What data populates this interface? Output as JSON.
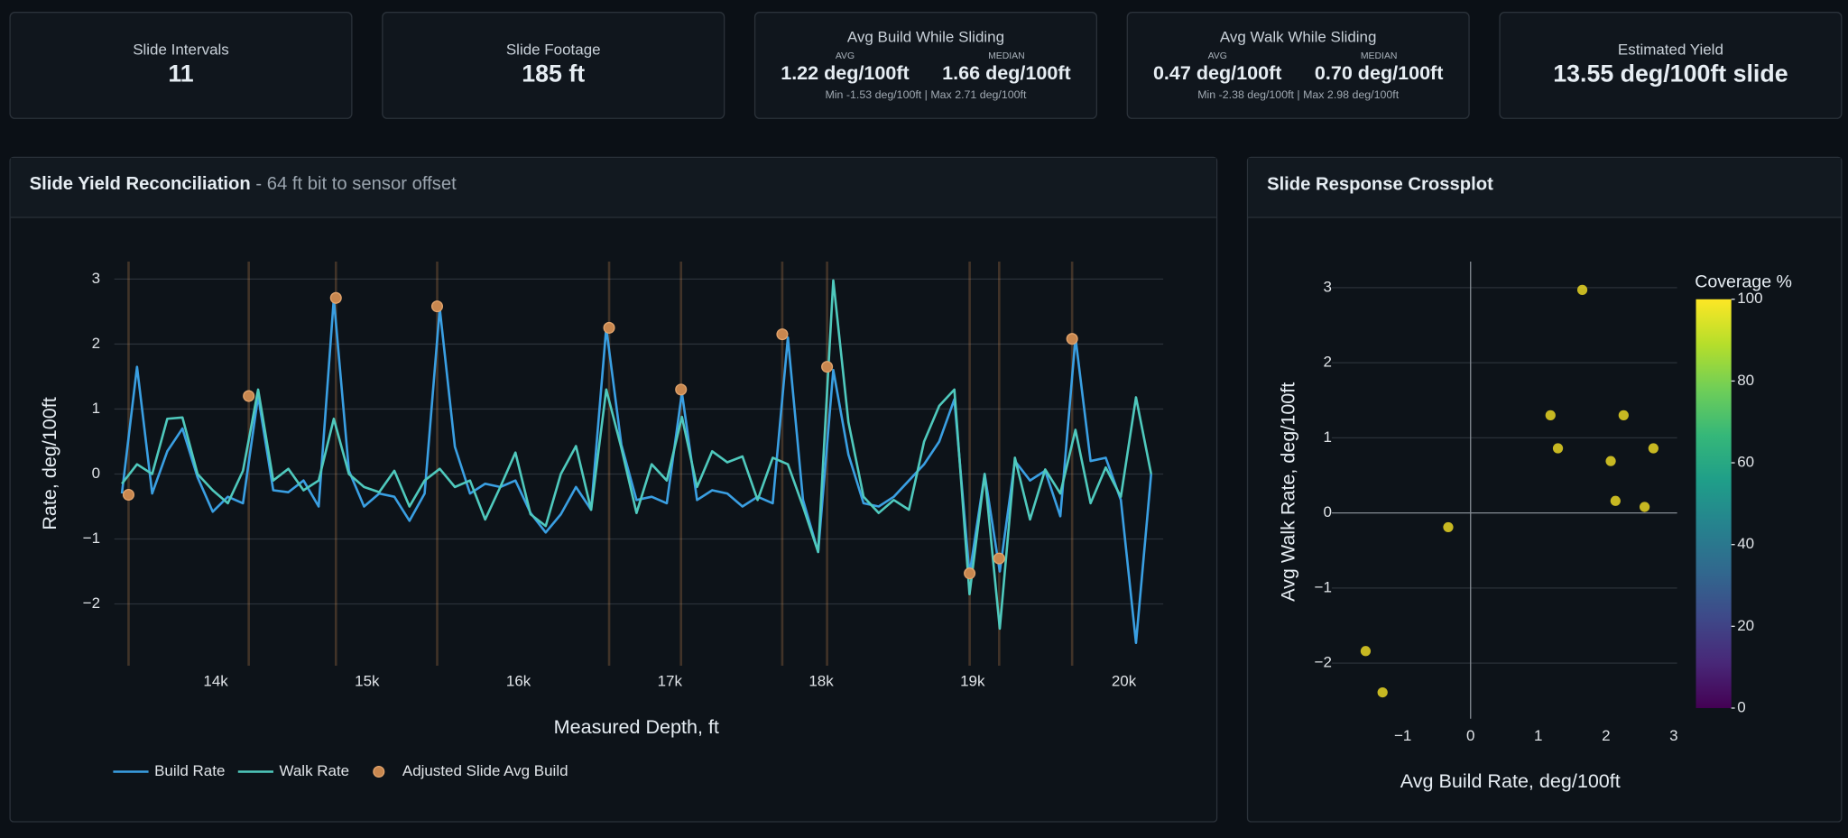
{
  "kpis": [
    {
      "label": "Slide Intervals",
      "value": "11"
    },
    {
      "label": "Slide Footage",
      "value": "185 ft"
    },
    {
      "label": "Avg Build While Sliding",
      "avg_label": "AVG",
      "avg": "1.22 deg/100ft",
      "median_label": "MEDIAN",
      "median": "1.66 deg/100ft",
      "range": "Min -1.53 deg/100ft | Max 2.71 deg/100ft"
    },
    {
      "label": "Avg Walk While Sliding",
      "avg_label": "AVG",
      "avg": "0.47 deg/100ft",
      "median_label": "MEDIAN",
      "median": "0.70 deg/100ft",
      "range": "Min -2.38 deg/100ft | Max 2.98 deg/100ft"
    },
    {
      "label": "Estimated Yield",
      "value": "13.55 deg/100ft slide"
    }
  ],
  "chart_data": [
    {
      "type": "line",
      "title": "Slide Yield Reconciliation",
      "subtitle": "- 64 ft bit to sensor offset",
      "x_label": "Measured Depth, ft",
      "y_label": "Rate, deg/100ft",
      "x": [
        13380,
        13480,
        13580,
        13680,
        13780,
        13880,
        13980,
        14080,
        14180,
        14280,
        14380,
        14480,
        14580,
        14680,
        14780,
        14880,
        14980,
        15080,
        15180,
        15280,
        15380,
        15480,
        15580,
        15680,
        15780,
        15880,
        15980,
        16080,
        16180,
        16280,
        16380,
        16480,
        16580,
        16680,
        16780,
        16880,
        16980,
        17080,
        17180,
        17280,
        17380,
        17480,
        17580,
        17680,
        17780,
        17880,
        17980,
        18080,
        18180,
        18280,
        18380,
        18480,
        18580,
        18680,
        18780,
        18880,
        18980,
        19080,
        19180,
        19280,
        19380,
        19480,
        19580,
        19680,
        19780,
        19880,
        19980,
        20080,
        20180
      ],
      "xlim": [
        13330,
        20260
      ],
      "xticks": [
        {
          "value": 14000,
          "label": "14k"
        },
        {
          "value": 15000,
          "label": "15k"
        },
        {
          "value": 16000,
          "label": "16k"
        },
        {
          "value": 17000,
          "label": "17k"
        },
        {
          "value": 18000,
          "label": "18k"
        },
        {
          "value": 19000,
          "label": "19k"
        },
        {
          "value": 20000,
          "label": "20k"
        }
      ],
      "ylim": [
        -2.95,
        3.27
      ],
      "yticks": [
        {
          "value": -2,
          "label": "−2"
        },
        {
          "value": -1,
          "label": "−1"
        },
        0,
        1,
        2,
        3
      ],
      "grid": true,
      "legend": "bottom",
      "series": [
        {
          "name": "Build Rate",
          "color": "#3a9fe2",
          "mode": "lines",
          "values": [
            -0.3,
            1.65,
            -0.3,
            0.35,
            0.7,
            -0.05,
            -0.58,
            -0.35,
            -0.45,
            1.2,
            -0.25,
            -0.28,
            -0.1,
            -0.5,
            2.7,
            0.05,
            -0.5,
            -0.3,
            -0.35,
            -0.72,
            -0.3,
            2.55,
            0.42,
            -0.3,
            -0.15,
            -0.2,
            -0.1,
            -0.6,
            -0.9,
            -0.62,
            -0.2,
            -0.55,
            2.25,
            0.45,
            -0.4,
            -0.35,
            -0.45,
            1.25,
            -0.4,
            -0.25,
            -0.3,
            -0.5,
            -0.35,
            -0.45,
            2.1,
            -0.4,
            -1.2,
            1.6,
            0.3,
            -0.45,
            -0.5,
            -0.35,
            -0.1,
            0.15,
            0.5,
            1.15,
            -1.55,
            0.0,
            -1.5,
            0.2,
            -0.1,
            0.05,
            -0.65,
            2.1,
            0.2,
            0.25,
            -0.4,
            -2.6,
            0.0
          ]
        },
        {
          "name": "Walk Rate",
          "color": "#4fc9bd",
          "mode": "lines",
          "values": [
            -0.15,
            0.15,
            0.0,
            0.85,
            0.87,
            0.0,
            -0.25,
            -0.45,
            0.05,
            1.3,
            -0.1,
            0.08,
            -0.25,
            -0.1,
            0.85,
            0.0,
            -0.2,
            -0.28,
            0.05,
            -0.5,
            -0.1,
            0.08,
            -0.2,
            -0.1,
            -0.7,
            -0.2,
            0.33,
            -0.62,
            -0.8,
            0.0,
            0.43,
            -0.55,
            1.3,
            0.4,
            -0.6,
            0.15,
            -0.1,
            0.88,
            -0.2,
            0.35,
            0.18,
            0.27,
            -0.4,
            0.25,
            0.15,
            -0.5,
            -1.2,
            2.98,
            0.8,
            -0.35,
            -0.6,
            -0.4,
            -0.55,
            0.5,
            1.05,
            1.3,
            -1.85,
            0.0,
            -2.38,
            0.25,
            -0.7,
            0.07,
            -0.3,
            0.68,
            -0.45,
            0.1,
            -0.35,
            1.18,
            0.0
          ]
        },
        {
          "name": "Adjusted Slide Avg Build",
          "color": "#c8874f",
          "mode": "markers",
          "x": [
            13424,
            14218,
            14794,
            15463,
            16599,
            17074,
            17743,
            18039,
            18981,
            19176,
            19658
          ],
          "values": [
            -0.32,
            1.2,
            2.71,
            2.58,
            2.25,
            1.3,
            2.15,
            1.65,
            -1.53,
            -1.3,
            2.08
          ]
        }
      ]
    },
    {
      "type": "scatter",
      "title": "Slide Response Crossplot",
      "x_label": "Avg Build Rate, deg/100ft",
      "y_label": "Avg Walk Rate, deg/100ft",
      "x": [
        1.65,
        1.18,
        2.26,
        1.29,
        2.7,
        2.07,
        2.14,
        2.57,
        -0.33,
        -1.55,
        -1.3
      ],
      "values": [
        2.97,
        1.3,
        1.3,
        0.86,
        0.86,
        0.69,
        0.16,
        0.08,
        -0.19,
        -1.84,
        -2.39
      ],
      "coverage": [
        100,
        100,
        100,
        100,
        100,
        100,
        100,
        100,
        100,
        100,
        100
      ],
      "colorscale": "viridis",
      "colorbar_title": "Coverage %",
      "clim": [
        0,
        100
      ],
      "cticks": [
        0,
        20,
        40,
        60,
        80,
        100
      ],
      "xlim": [
        -2.05,
        3.05
      ],
      "xticks": [
        {
          "value": -1,
          "label": "−1"
        },
        0,
        1,
        2,
        3
      ],
      "ylim": [
        -2.74,
        3.3
      ],
      "yticks": [
        {
          "value": -2,
          "label": "−2"
        },
        {
          "value": -1,
          "label": "−1"
        },
        0,
        1,
        2,
        3
      ]
    }
  ]
}
